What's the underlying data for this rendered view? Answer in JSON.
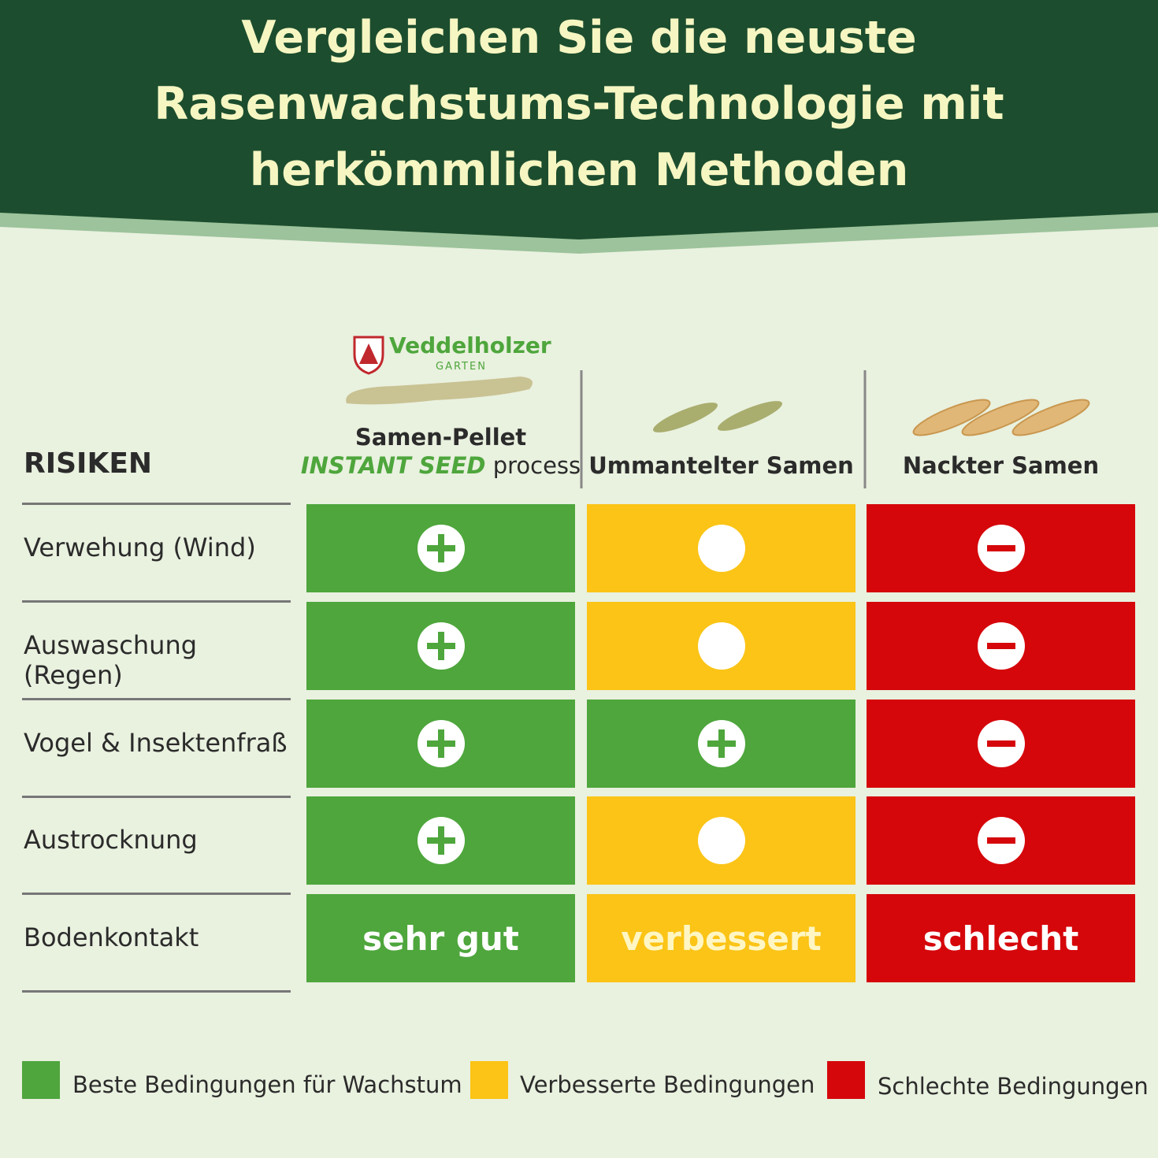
{
  "header": {
    "title_lines": [
      "Vergleichen Sie die neuste",
      "Rasenwachstums-Technologie mit",
      "herkömmlichen Methoden"
    ]
  },
  "logo": {
    "brand": "Veddelholzer",
    "tagline": "GARTEN"
  },
  "table": {
    "row_header": "RISIKEN",
    "columns": [
      {
        "title": "Samen-Pellet",
        "highlight": "INSTANT SEED",
        "suffix": "process"
      },
      {
        "title": "Ummantelter Samen"
      },
      {
        "title": "Nackter Samen"
      }
    ],
    "rows": [
      {
        "label": "Verwehung (Wind)",
        "cells": [
          {
            "color": "#4ea63c",
            "icon": "plus"
          },
          {
            "color": "#fbc416",
            "icon": "circle"
          },
          {
            "color": "#d5070b",
            "icon": "minus"
          }
        ]
      },
      {
        "label": "Auswaschung (Regen)",
        "cells": [
          {
            "color": "#4ea63c",
            "icon": "plus"
          },
          {
            "color": "#fbc416",
            "icon": "circle"
          },
          {
            "color": "#d5070b",
            "icon": "minus"
          }
        ]
      },
      {
        "label": "Vogel & Insektenfraß",
        "cells": [
          {
            "color": "#4ea63c",
            "icon": "plus"
          },
          {
            "color": "#4ea63c",
            "icon": "plus"
          },
          {
            "color": "#d5070b",
            "icon": "minus"
          }
        ]
      },
      {
        "label": "Austrocknung",
        "cells": [
          {
            "color": "#4ea63c",
            "icon": "plus"
          },
          {
            "color": "#fbc416",
            "icon": "circle"
          },
          {
            "color": "#d5070b",
            "icon": "minus"
          }
        ]
      },
      {
        "label": "Bodenkontakt",
        "cells": [
          {
            "color": "#4ea63c",
            "text": "sehr gut",
            "text_color": "#ffffff"
          },
          {
            "color": "#fbc416",
            "text": "verbessert",
            "text_color": "#fff6c4"
          },
          {
            "color": "#d5070b",
            "text": "schlecht",
            "text_color": "#ffffff"
          }
        ]
      }
    ]
  },
  "legend": [
    {
      "color": "#4ea63c",
      "label": "Beste Bedingungen für Wachstum"
    },
    {
      "color": "#fbc416",
      "label": "Verbesserte Bedingungen"
    },
    {
      "color": "#d5070b",
      "label": "Schlechte Bedingungen"
    }
  ]
}
